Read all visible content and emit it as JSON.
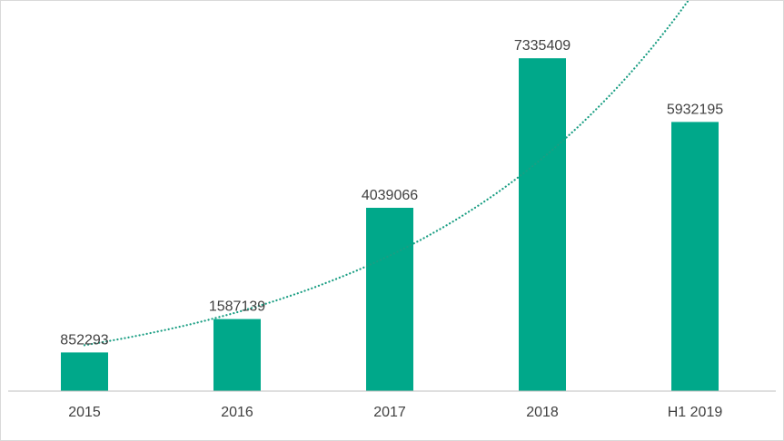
{
  "chart_data": {
    "type": "bar",
    "categories": [
      "2015",
      "2016",
      "2017",
      "2018",
      "H1 2019"
    ],
    "values": [
      852293,
      1587139,
      4039066,
      7335409,
      5932195
    ],
    "data_labels": [
      "852293",
      "1587139",
      "4039066",
      "7335409",
      "5932195"
    ],
    "title": "",
    "xlabel": "",
    "ylabel": "",
    "ylim": [
      0,
      8000000
    ],
    "grid": false,
    "legend": "none",
    "trendline": {
      "type": "exponential",
      "style": "dotted"
    },
    "colors": {
      "bar": "#00a88a",
      "trendline": "#1a9e83",
      "axis": "#bfbfbf"
    }
  }
}
